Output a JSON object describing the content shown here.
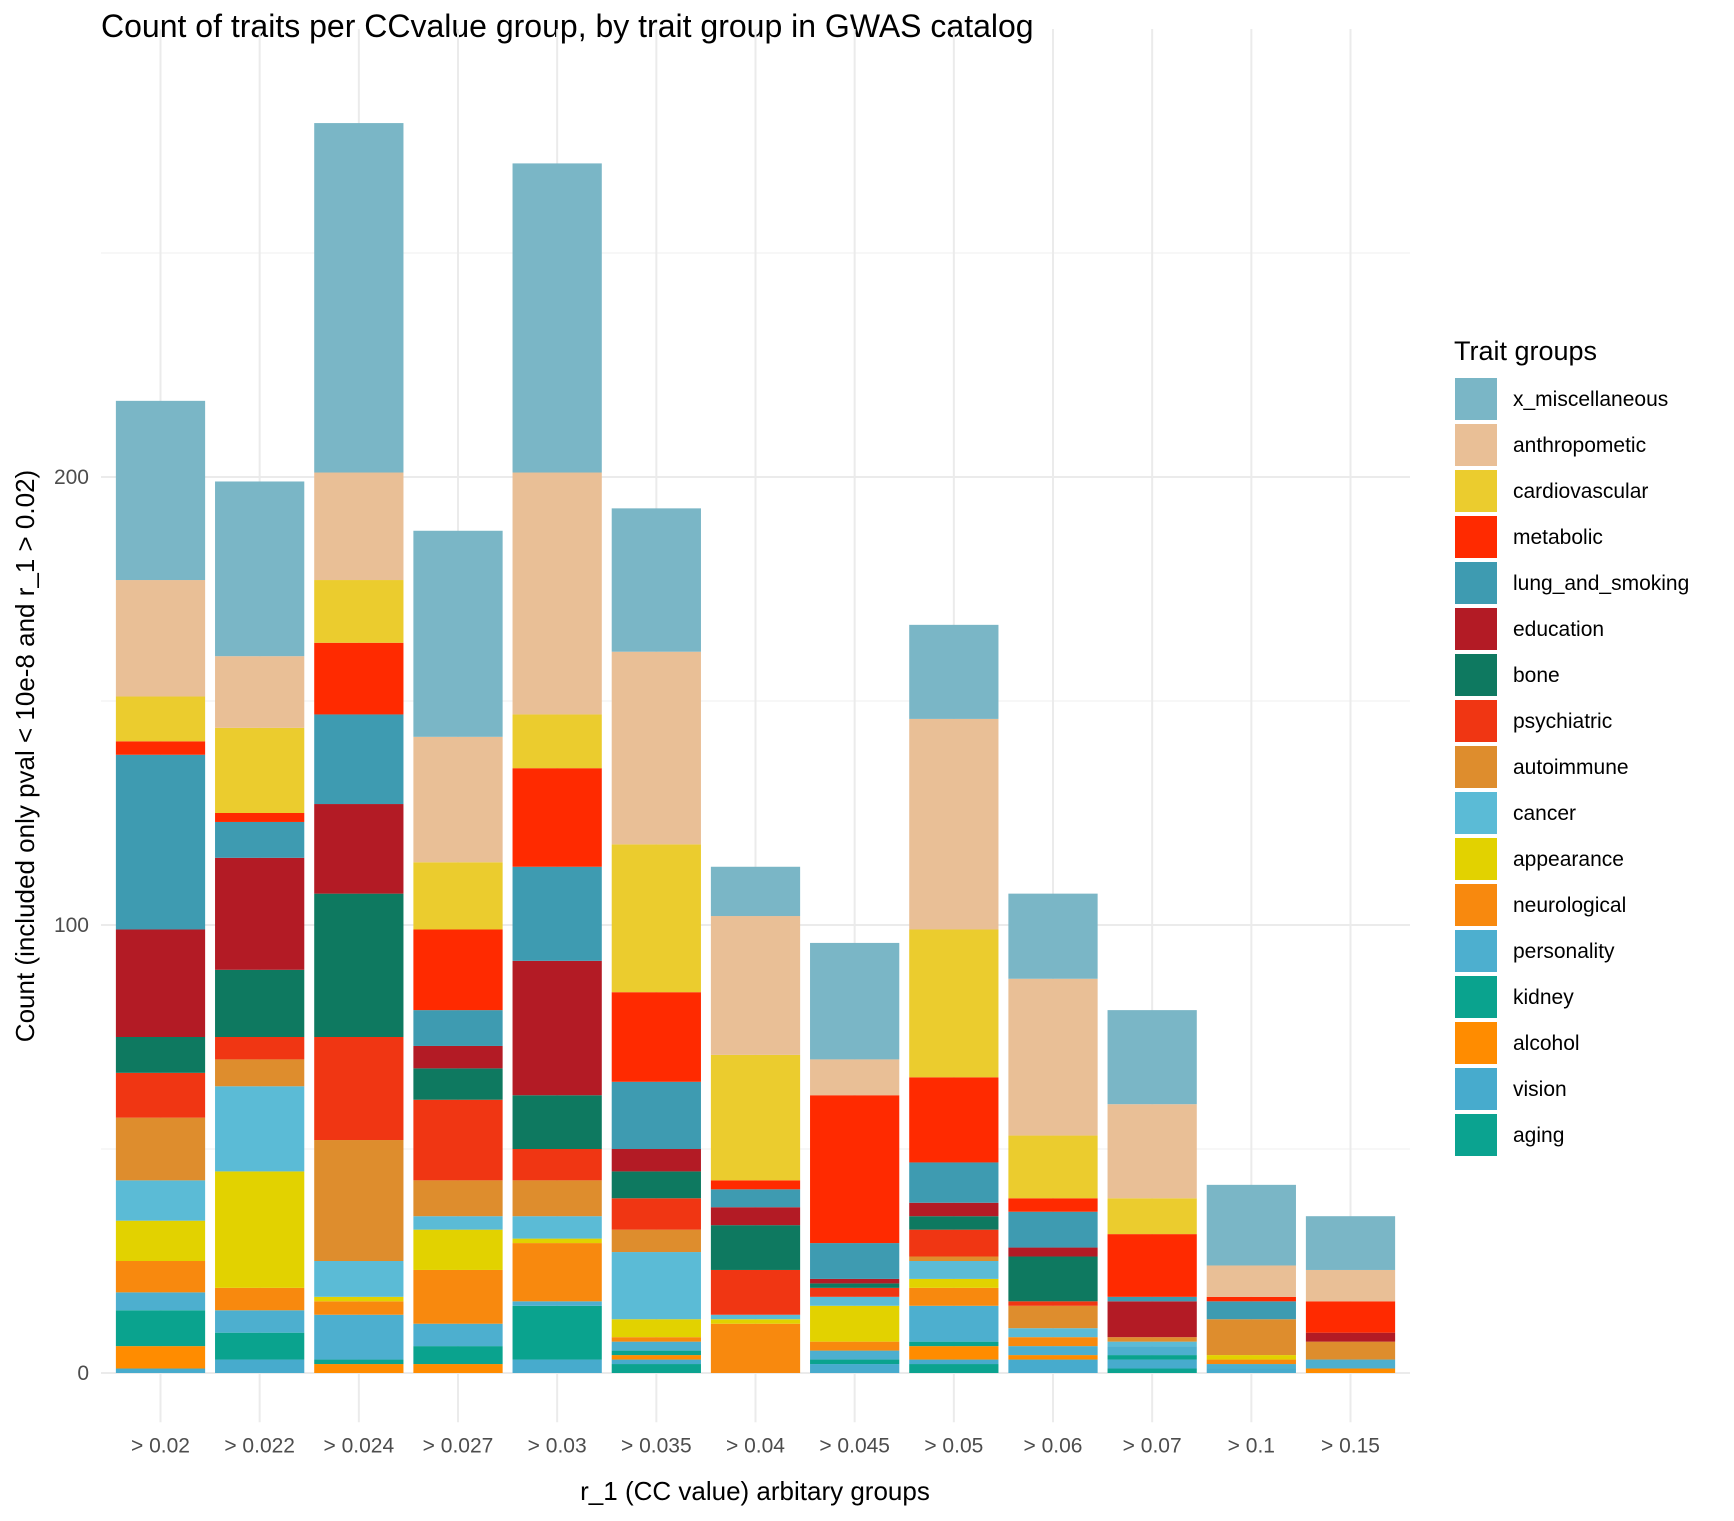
{
  "chart_data": {
    "type": "bar",
    "stacked": true,
    "title": "Count of traits per CCvalue group, by trait group in GWAS catalog",
    "xlabel": "r_1 (CC value) arbitary groups",
    "ylabel": "Count (included only pval < 10e-8 and r_1 > 0.02)",
    "ylim": [
      -11,
      300
    ],
    "yticks": [
      0,
      100,
      200
    ],
    "grid": true,
    "legend_title": "Trait groups",
    "legend_position": "right",
    "categories": [
      "> 0.02",
      "> 0.022",
      "> 0.024",
      "> 0.027",
      "> 0.03",
      "> 0.035",
      "> 0.04",
      "> 0.045",
      "> 0.05",
      "> 0.06",
      "> 0.07",
      "> 0.1",
      "> 0.15"
    ],
    "series": [
      {
        "name": "x_miscellaneous",
        "color": "#7AB6C6",
        "values": [
          40,
          39,
          78,
          46,
          69,
          32,
          11,
          26,
          21,
          19,
          21,
          18,
          12
        ]
      },
      {
        "name": "anthropometic",
        "color": "#E9BF96",
        "values": [
          26,
          16,
          24,
          28,
          54,
          43,
          31,
          8,
          47,
          35,
          21,
          7,
          7
        ]
      },
      {
        "name": "cardiovascular",
        "color": "#EBCC2E",
        "values": [
          10,
          19,
          14,
          15,
          12,
          33,
          28,
          0,
          33,
          14,
          8,
          0,
          0
        ]
      },
      {
        "name": "metabolic",
        "color": "#FF2A00",
        "values": [
          3,
          2,
          16,
          18,
          22,
          20,
          2,
          33,
          19,
          3,
          14,
          1,
          7
        ]
      },
      {
        "name": "lung_and_smoking",
        "color": "#3E9BB1",
        "values": [
          39,
          8,
          20,
          8,
          21,
          15,
          4,
          8,
          9,
          8,
          1,
          4,
          0
        ]
      },
      {
        "name": "education",
        "color": "#B31B25",
        "values": [
          24,
          25,
          20,
          5,
          30,
          5,
          4,
          1,
          3,
          2,
          8,
          0,
          2
        ]
      },
      {
        "name": "bone",
        "color": "#0E7960",
        "values": [
          8,
          15,
          32,
          7,
          12,
          6,
          10,
          1,
          3,
          10,
          0,
          0,
          0
        ]
      },
      {
        "name": "psychiatric",
        "color": "#F03613",
        "values": [
          10,
          5,
          23,
          18,
          7,
          7,
          10,
          2,
          6,
          1,
          0,
          0,
          0
        ]
      },
      {
        "name": "autoimmune",
        "color": "#DE8D2D",
        "values": [
          14,
          6,
          27,
          8,
          8,
          5,
          0,
          0,
          1,
          5,
          1,
          8,
          4
        ]
      },
      {
        "name": "cancer",
        "color": "#5BBBD6",
        "values": [
          9,
          19,
          8,
          3,
          5,
          15,
          1,
          2,
          4,
          2,
          1,
          0,
          0
        ]
      },
      {
        "name": "appearance",
        "color": "#E2D200",
        "values": [
          9,
          26,
          1,
          9,
          1,
          4,
          1,
          8,
          2,
          0,
          0,
          1,
          0
        ]
      },
      {
        "name": "neurological",
        "color": "#F8890E",
        "values": [
          7,
          5,
          3,
          12,
          13,
          1,
          11,
          2,
          4,
          2,
          0,
          1,
          0
        ]
      },
      {
        "name": "personality",
        "color": "#4DAFCF",
        "values": [
          4,
          5,
          10,
          5,
          1,
          2,
          0,
          2,
          8,
          2,
          2,
          1,
          2
        ]
      },
      {
        "name": "kidney",
        "color": "#0AA38E",
        "values": [
          8,
          6,
          1,
          4,
          12,
          1,
          0,
          1,
          1,
          0,
          1,
          0,
          0
        ]
      },
      {
        "name": "alcohol",
        "color": "#FF8C00",
        "values": [
          5,
          0,
          2,
          2,
          0,
          1,
          0,
          0,
          3,
          1,
          0,
          0,
          1
        ]
      },
      {
        "name": "vision",
        "color": "#47ABCD",
        "values": [
          1,
          3,
          0,
          0,
          3,
          1,
          0,
          2,
          1,
          3,
          2,
          1,
          0
        ]
      },
      {
        "name": "aging",
        "color": "#0BA390",
        "values": [
          0,
          0,
          0,
          0,
          0,
          2,
          0,
          0,
          2,
          0,
          1,
          0,
          0
        ]
      }
    ]
  }
}
